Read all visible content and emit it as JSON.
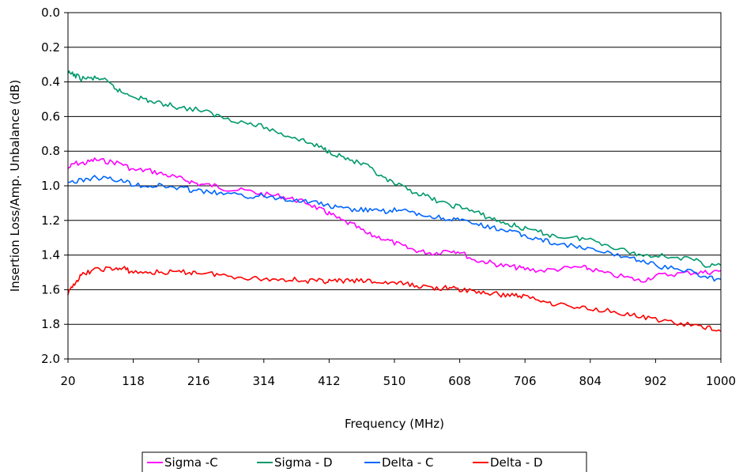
{
  "chart_data": {
    "type": "line",
    "title": "",
    "xlabel": "Frequency (MHz)",
    "ylabel": "Insertion Loss/Amp. Unbalance (dB)",
    "xlim": [
      20,
      1000
    ],
    "ylim": [
      0.0,
      2.0
    ],
    "y_inverted": true,
    "x_ticks": [
      "20",
      "118",
      "216",
      "314",
      "412",
      "510",
      "608",
      "706",
      "804",
      "902",
      "1000"
    ],
    "y_ticks": [
      "0.0",
      "0.2",
      "0.4",
      "0.6",
      "0.8",
      "1.0",
      "1.2",
      "1.4",
      "1.6",
      "1.8",
      "2.0"
    ],
    "grid": "horizontal",
    "legend_position": "bottom",
    "series": [
      {
        "name": "Sigma -C",
        "color": "#ff00ff",
        "points": [
          [
            20,
            0.9
          ],
          [
            30,
            0.87
          ],
          [
            45,
            0.87
          ],
          [
            60,
            0.85
          ],
          [
            80,
            0.86
          ],
          [
            100,
            0.87
          ],
          [
            118,
            0.91
          ],
          [
            140,
            0.91
          ],
          [
            160,
            0.93
          ],
          [
            180,
            0.95
          ],
          [
            200,
            0.97
          ],
          [
            216,
            0.99
          ],
          [
            240,
            1.0
          ],
          [
            260,
            1.02
          ],
          [
            290,
            1.03
          ],
          [
            314,
            1.05
          ],
          [
            340,
            1.06
          ],
          [
            360,
            1.08
          ],
          [
            380,
            1.1
          ],
          [
            400,
            1.14
          ],
          [
            412,
            1.16
          ],
          [
            430,
            1.2
          ],
          [
            450,
            1.23
          ],
          [
            470,
            1.28
          ],
          [
            490,
            1.3
          ],
          [
            510,
            1.33
          ],
          [
            530,
            1.36
          ],
          [
            550,
            1.38
          ],
          [
            570,
            1.39
          ],
          [
            590,
            1.37
          ],
          [
            608,
            1.38
          ],
          [
            630,
            1.43
          ],
          [
            650,
            1.44
          ],
          [
            670,
            1.46
          ],
          [
            690,
            1.47
          ],
          [
            706,
            1.48
          ],
          [
            730,
            1.49
          ],
          [
            760,
            1.48
          ],
          [
            790,
            1.47
          ],
          [
            804,
            1.48
          ],
          [
            830,
            1.51
          ],
          [
            860,
            1.53
          ],
          [
            880,
            1.55
          ],
          [
            902,
            1.52
          ],
          [
            930,
            1.51
          ],
          [
            960,
            1.5
          ],
          [
            980,
            1.5
          ],
          [
            1000,
            1.49
          ]
        ]
      },
      {
        "name": "Sigma - D",
        "color": "#00996b",
        "points": [
          [
            20,
            0.35
          ],
          [
            30,
            0.36
          ],
          [
            40,
            0.38
          ],
          [
            55,
            0.38
          ],
          [
            70,
            0.38
          ],
          [
            85,
            0.42
          ],
          [
            100,
            0.46
          ],
          [
            118,
            0.48
          ],
          [
            135,
            0.5
          ],
          [
            150,
            0.52
          ],
          [
            170,
            0.53
          ],
          [
            190,
            0.55
          ],
          [
            216,
            0.56
          ],
          [
            240,
            0.59
          ],
          [
            260,
            0.61
          ],
          [
            290,
            0.64
          ],
          [
            314,
            0.66
          ],
          [
            340,
            0.7
          ],
          [
            360,
            0.72
          ],
          [
            380,
            0.75
          ],
          [
            400,
            0.78
          ],
          [
            412,
            0.8
          ],
          [
            430,
            0.83
          ],
          [
            450,
            0.86
          ],
          [
            470,
            0.89
          ],
          [
            490,
            0.95
          ],
          [
            510,
            0.99
          ],
          [
            530,
            1.02
          ],
          [
            550,
            1.05
          ],
          [
            570,
            1.08
          ],
          [
            590,
            1.11
          ],
          [
            608,
            1.12
          ],
          [
            630,
            1.15
          ],
          [
            650,
            1.18
          ],
          [
            670,
            1.21
          ],
          [
            690,
            1.23
          ],
          [
            706,
            1.25
          ],
          [
            730,
            1.27
          ],
          [
            750,
            1.29
          ],
          [
            780,
            1.3
          ],
          [
            804,
            1.31
          ],
          [
            830,
            1.34
          ],
          [
            860,
            1.38
          ],
          [
            880,
            1.4
          ],
          [
            902,
            1.4
          ],
          [
            930,
            1.41
          ],
          [
            960,
            1.43
          ],
          [
            980,
            1.46
          ],
          [
            1000,
            1.46
          ]
        ]
      },
      {
        "name": "Delta - C",
        "color": "#0066ff",
        "points": [
          [
            20,
            0.98
          ],
          [
            40,
            0.97
          ],
          [
            60,
            0.95
          ],
          [
            80,
            0.96
          ],
          [
            100,
            0.97
          ],
          [
            118,
            0.99
          ],
          [
            140,
            1.0
          ],
          [
            160,
            1.0
          ],
          [
            180,
            1.01
          ],
          [
            200,
            1.02
          ],
          [
            216,
            1.03
          ],
          [
            240,
            1.04
          ],
          [
            260,
            1.05
          ],
          [
            290,
            1.06
          ],
          [
            314,
            1.06
          ],
          [
            340,
            1.07
          ],
          [
            360,
            1.08
          ],
          [
            380,
            1.09
          ],
          [
            400,
            1.1
          ],
          [
            412,
            1.12
          ],
          [
            430,
            1.13
          ],
          [
            450,
            1.14
          ],
          [
            470,
            1.14
          ],
          [
            490,
            1.15
          ],
          [
            510,
            1.14
          ],
          [
            530,
            1.15
          ],
          [
            550,
            1.17
          ],
          [
            570,
            1.18
          ],
          [
            590,
            1.19
          ],
          [
            608,
            1.2
          ],
          [
            630,
            1.22
          ],
          [
            650,
            1.24
          ],
          [
            670,
            1.25
          ],
          [
            690,
            1.27
          ],
          [
            706,
            1.29
          ],
          [
            730,
            1.31
          ],
          [
            750,
            1.33
          ],
          [
            780,
            1.35
          ],
          [
            804,
            1.37
          ],
          [
            830,
            1.39
          ],
          [
            860,
            1.41
          ],
          [
            880,
            1.43
          ],
          [
            902,
            1.46
          ],
          [
            930,
            1.48
          ],
          [
            960,
            1.5
          ],
          [
            980,
            1.53
          ],
          [
            1000,
            1.54
          ]
        ]
      },
      {
        "name": "Delta - D",
        "color": "#ff0000",
        "points": [
          [
            20,
            1.63
          ],
          [
            30,
            1.56
          ],
          [
            40,
            1.52
          ],
          [
            55,
            1.49
          ],
          [
            70,
            1.48
          ],
          [
            90,
            1.48
          ],
          [
            105,
            1.48
          ],
          [
            118,
            1.5
          ],
          [
            140,
            1.5
          ],
          [
            160,
            1.5
          ],
          [
            180,
            1.5
          ],
          [
            200,
            1.5
          ],
          [
            216,
            1.5
          ],
          [
            240,
            1.51
          ],
          [
            260,
            1.52
          ],
          [
            290,
            1.53
          ],
          [
            314,
            1.54
          ],
          [
            340,
            1.54
          ],
          [
            360,
            1.54
          ],
          [
            380,
            1.55
          ],
          [
            400,
            1.55
          ],
          [
            412,
            1.55
          ],
          [
            430,
            1.55
          ],
          [
            450,
            1.55
          ],
          [
            470,
            1.55
          ],
          [
            490,
            1.56
          ],
          [
            510,
            1.56
          ],
          [
            530,
            1.57
          ],
          [
            550,
            1.58
          ],
          [
            570,
            1.59
          ],
          [
            590,
            1.59
          ],
          [
            608,
            1.6
          ],
          [
            630,
            1.61
          ],
          [
            650,
            1.62
          ],
          [
            670,
            1.63
          ],
          [
            690,
            1.63
          ],
          [
            706,
            1.64
          ],
          [
            730,
            1.66
          ],
          [
            750,
            1.68
          ],
          [
            780,
            1.7
          ],
          [
            804,
            1.71
          ],
          [
            830,
            1.72
          ],
          [
            860,
            1.74
          ],
          [
            880,
            1.76
          ],
          [
            902,
            1.77
          ],
          [
            930,
            1.79
          ],
          [
            960,
            1.81
          ],
          [
            980,
            1.82
          ],
          [
            1000,
            1.84
          ]
        ]
      }
    ]
  }
}
